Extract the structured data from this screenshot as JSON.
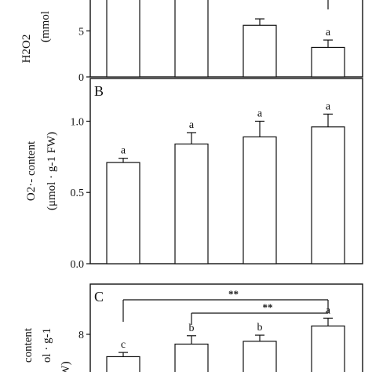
{
  "chart_data": [
    {
      "panel": "A",
      "type": "bar",
      "ylabel_lines": [
        "H2O2",
        "(mmol"
      ],
      "yticks": [
        0,
        5
      ],
      "ylim": [
        0,
        9.2
      ],
      "values": [
        8.5,
        8.5,
        5.6,
        3.2
      ],
      "errors": [
        0,
        0,
        0.7,
        0.8
      ],
      "letters": [
        "",
        "",
        "",
        "a"
      ]
    },
    {
      "panel": "B",
      "type": "bar",
      "panel_label": "B",
      "ylabel_line1": "O2·- content",
      "ylabel_line2": "(μmol · g-1 FW)",
      "yticks": [
        "0.0",
        "0.5",
        "1.0"
      ],
      "ytick_values": [
        0.0,
        0.5,
        1.0
      ],
      "ylim": [
        0.0,
        1.3
      ],
      "values": [
        0.71,
        0.84,
        0.89,
        0.96
      ],
      "errors": [
        0.03,
        0.08,
        0.11,
        0.09
      ],
      "letters": [
        "a",
        "a",
        "a",
        "a"
      ]
    },
    {
      "panel": "C",
      "type": "bar",
      "panel_label": "C",
      "ylabel_line1": "content",
      "ylabel_line2": "ol · g-1",
      "ylabel_line3": "W)",
      "yticks": [
        "8"
      ],
      "ytick_values": [
        8
      ],
      "ylim": [
        6.2,
        9.8
      ],
      "values": [
        7.2,
        7.65,
        7.75,
        8.3
      ],
      "errors": [
        0.15,
        0.3,
        0.22,
        0.28
      ],
      "letters": [
        "c",
        "b",
        "b",
        "a"
      ],
      "significance": [
        {
          "from": 0,
          "to": 3,
          "label": "**"
        },
        {
          "from": 1,
          "to": 3,
          "label": "**"
        }
      ]
    }
  ]
}
